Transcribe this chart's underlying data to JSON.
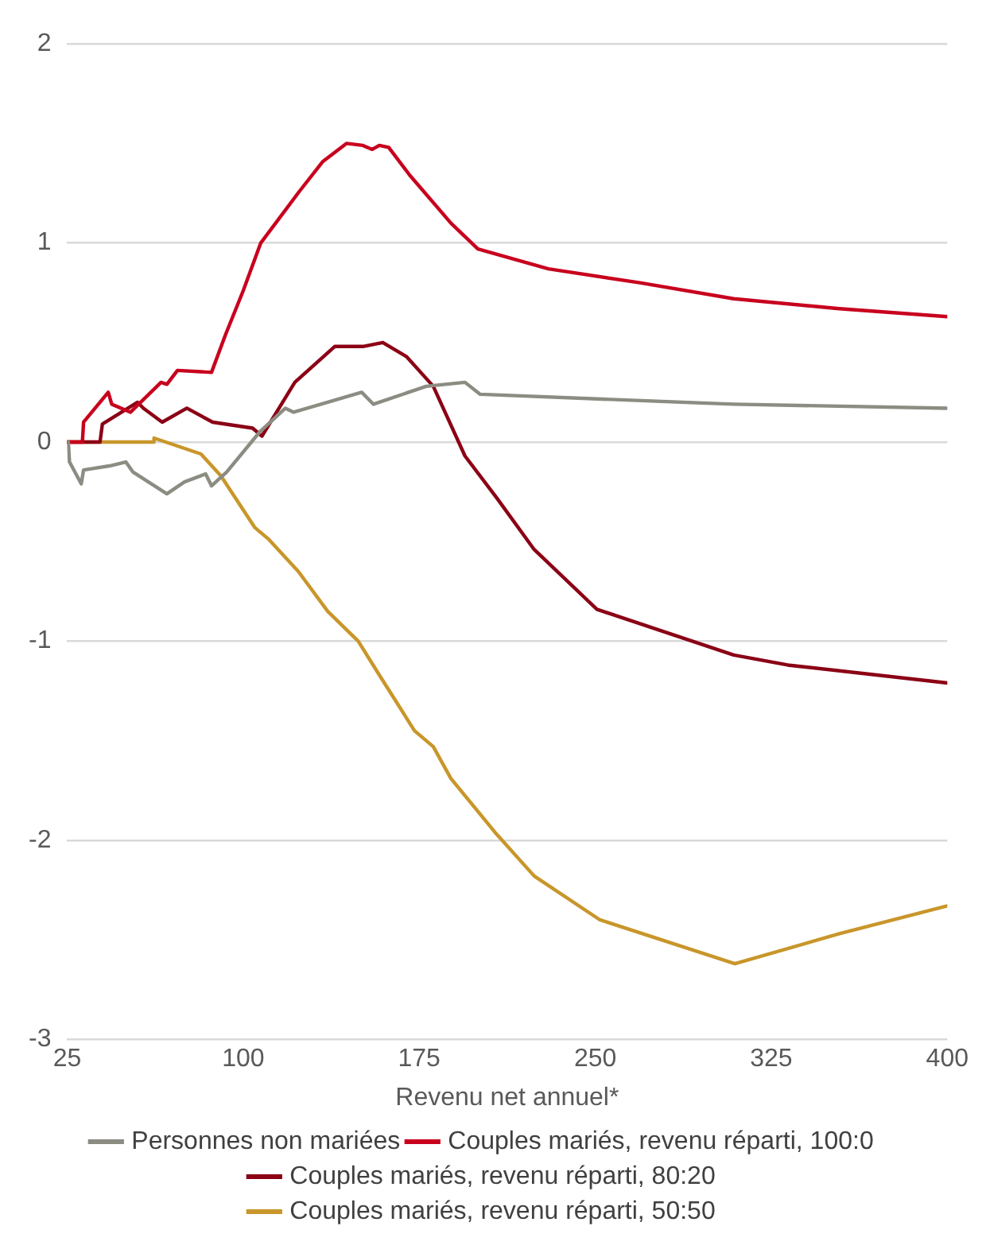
{
  "chart_data": {
    "type": "line",
    "xlabel": "Revenu net annuel*",
    "xlim": [
      25,
      400
    ],
    "xticks": [
      25,
      100,
      175,
      250,
      325,
      400
    ],
    "ylim": [
      -3,
      2
    ],
    "yticks": [
      -3,
      -2,
      -1,
      0,
      1,
      2
    ],
    "grid": "y",
    "legend": "bottom",
    "marker": "none",
    "line_style": "solid",
    "series": [
      {
        "name": "Personnes non mariées",
        "color": "#8c8c82",
        "x": [
          25.5,
          26,
          31,
          32,
          43,
          50,
          53,
          67.5,
          75,
          84,
          86.5,
          93,
          107,
          118,
          121.5,
          150.5,
          155.5,
          178,
          194.5,
          201,
          309,
          400
        ],
        "values": [
          0,
          -0.1,
          -0.21,
          -0.14,
          -0.12,
          -0.1,
          -0.15,
          -0.26,
          -0.2,
          -0.16,
          -0.22,
          -0.15,
          0.05,
          0.17,
          0.15,
          0.25,
          0.19,
          0.28,
          0.3,
          0.24,
          0.19,
          0.17
        ]
      },
      {
        "name": "Couples mariés, revenu réparti, 100:0",
        "color": "#c8001e",
        "x": [
          25,
          31.5,
          32,
          42.5,
          44,
          52,
          65,
          67.5,
          72,
          86.5,
          92.5,
          100,
          107.5,
          124,
          134,
          144,
          151,
          155,
          158,
          162,
          171,
          188.5,
          200,
          230,
          269,
          309,
          354,
          400
        ],
        "values": [
          0,
          0,
          0.1,
          0.25,
          0.19,
          0.15,
          0.3,
          0.29,
          0.36,
          0.35,
          0.54,
          0.76,
          1,
          1.26,
          1.41,
          1.5,
          1.49,
          1.47,
          1.49,
          1.48,
          1.34,
          1.1,
          0.97,
          0.87,
          0.8,
          0.72,
          0.67,
          0.63
        ]
      },
      {
        "name": "Couples mariés, revenu réparti, 80:20",
        "color": "#8b0015",
        "x": [
          25,
          39,
          40,
          55,
          57.5,
          65.5,
          76,
          87,
          104,
          108,
          122,
          139,
          151,
          159.5,
          169.5,
          181,
          194.5,
          208,
          224,
          250.7,
          309,
          332,
          400
        ],
        "values": [
          0,
          0,
          0.09,
          0.2,
          0.17,
          0.1,
          0.17,
          0.1,
          0.07,
          0.03,
          0.3,
          0.48,
          0.48,
          0.5,
          0.43,
          0.28,
          -0.07,
          -0.28,
          -0.54,
          -0.84,
          -1.07,
          -1.12,
          -1.21
        ]
      },
      {
        "name": "Couples mariés, revenu réparti, 50:50",
        "color": "#c8962a",
        "x": [
          25,
          61.5,
          62,
          82,
          90.5,
          105,
          111,
          123.5,
          136,
          149,
          158,
          173,
          181,
          188.5,
          208,
          224,
          252,
          309.5,
          354,
          400
        ],
        "values": [
          0,
          0,
          0.02,
          -0.06,
          -0.17,
          -0.43,
          -0.49,
          -0.65,
          -0.85,
          -1,
          -1.17,
          -1.45,
          -1.53,
          -1.69,
          -1.97,
          -2.18,
          -2.4,
          -2.62,
          -2.47,
          -2.33
        ]
      }
    ]
  }
}
